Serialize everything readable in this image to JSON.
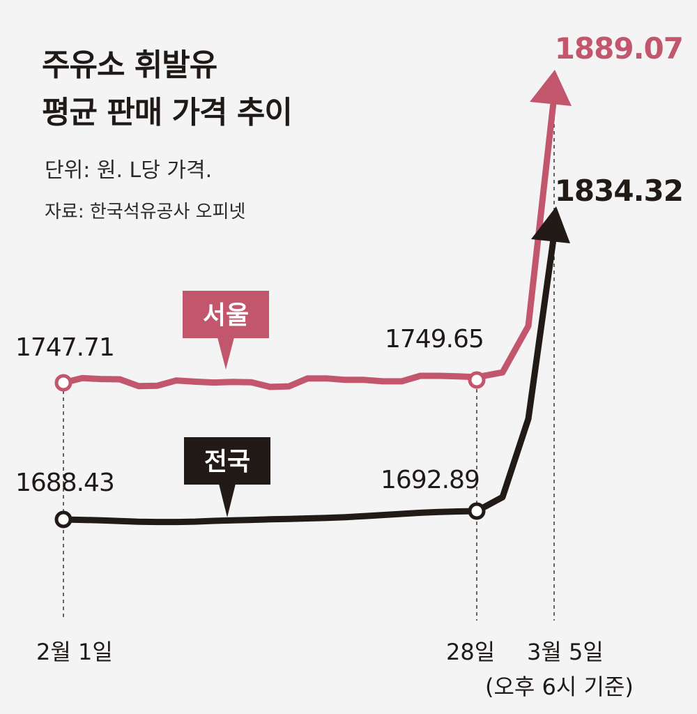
{
  "chart_data": {
    "type": "line",
    "title_line1": "주유소 휘발유",
    "title_line2": "평균 판매 가격 추이",
    "unit": "단위: 원. L당 가격.",
    "source": "자료: 한국석유공사 오피넷",
    "x_labels": {
      "start": "2월 1일",
      "mid": "28일",
      "end": "3월 5일",
      "end_note": "(오후 6시 기준)"
    },
    "series": [
      {
        "name": "서울",
        "color": "#c2566d",
        "start_label": "1747.71",
        "mid_label": "1749.65",
        "end_label": "1889.07",
        "values": [
          1747.71,
          1749.3,
          1749.0,
          1748.9,
          1746.6,
          1746.7,
          1748.5,
          1748.1,
          1747.8,
          1748.0,
          1747.9,
          1746.3,
          1746.5,
          1749.2,
          1749.2,
          1748.7,
          1748.7,
          1748.2,
          1748.2,
          1750.1,
          1750.1,
          1749.9,
          1749.65,
          1752.0,
          1775.0,
          1889.07
        ]
      },
      {
        "name": "전국",
        "color": "#211a17",
        "start_label": "1688.43",
        "mid_label": "1692.89",
        "end_label": "1834.32",
        "values": [
          1688.43,
          1688.2,
          1688.0,
          1687.6,
          1687.2,
          1687.1,
          1687.1,
          1687.3,
          1687.7,
          1688.0,
          1688.2,
          1688.5,
          1688.7,
          1689.0,
          1689.3,
          1689.6,
          1690.2,
          1690.8,
          1691.4,
          1692.0,
          1692.4,
          1692.7,
          1692.89,
          1700.0,
          1740.0,
          1834.32
        ]
      }
    ]
  }
}
